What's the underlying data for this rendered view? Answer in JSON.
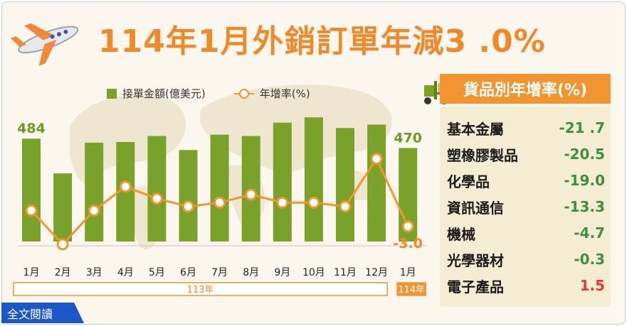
{
  "title": "114年1月外銷訂單年減3 .0%",
  "legend": {
    "bar_label": "接單金額(億美元)",
    "line_label": "年增率(%)"
  },
  "colors": {
    "bar": "#7aa22a",
    "line": "#f0952f",
    "title": "#ef8a2c",
    "negative": "#3f8f3f",
    "positive": "#e23a3a",
    "button": "#1c57c7"
  },
  "chart_data": {
    "type": "bar",
    "categories": [
      "1月",
      "2月",
      "3月",
      "4月",
      "5月",
      "6月",
      "7月",
      "8月",
      "9月",
      "10月",
      "11月",
      "12月",
      "1月"
    ],
    "year_groups": [
      {
        "label": "113年",
        "span": 12
      },
      {
        "label": "114年",
        "span": 1
      }
    ],
    "series": [
      {
        "name": "接單金額(億美元)",
        "type": "bar",
        "values": [
          484,
          432,
          478,
          479,
          488,
          467,
          490,
          488,
          508,
          516,
          500,
          505,
          470
        ]
      },
      {
        "name": "年增率(%)",
        "type": "line",
        "values": [
          1.0,
          -7.5,
          1.0,
          7.0,
          4.0,
          2.0,
          3.0,
          5.0,
          3.0,
          3.0,
          2.0,
          14.0,
          -3.0
        ]
      }
    ],
    "data_labels": [
      {
        "index": 0,
        "series": 0,
        "text": "484"
      },
      {
        "index": 12,
        "series": 0,
        "text": "470"
      },
      {
        "index": 12,
        "series": 1,
        "text": "-3.0"
      }
    ]
  },
  "category_panel": {
    "title": "貨品別年增率(%)",
    "items": [
      {
        "name": "基本金屬",
        "value": "-21 .7"
      },
      {
        "name": "塑橡膠製品",
        "value": "-20.5"
      },
      {
        "name": "化學品",
        "value": "-19.0"
      },
      {
        "name": "資訊通信",
        "value": "-13.3"
      },
      {
        "name": "機械",
        "value": "-4.7"
      },
      {
        "name": "光學器材",
        "value": "-0.3"
      },
      {
        "name": "電子產品",
        "value": "1.5"
      }
    ]
  },
  "read_button": "全文閱讀"
}
